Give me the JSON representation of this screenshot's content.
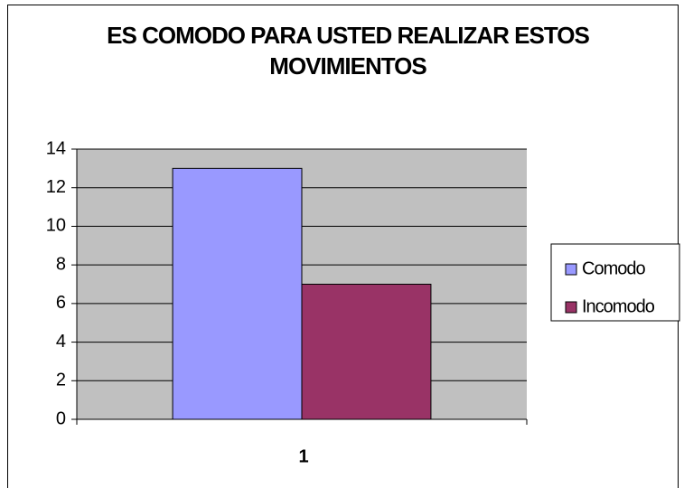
{
  "chart_data": {
    "type": "bar",
    "title": "ES COMODO PARA USTED REALIZAR ESTOS MOVIMIENTOS",
    "categories": [
      "1"
    ],
    "series": [
      {
        "name": "Comodo",
        "color": "#9999ff",
        "values": [
          13
        ]
      },
      {
        "name": "Incomodo",
        "color": "#993366",
        "values": [
          7
        ]
      }
    ],
    "ylim": [
      0,
      14
    ],
    "yticks": [
      0,
      2,
      4,
      6,
      8,
      10,
      12,
      14
    ],
    "grid": true,
    "legend": "right",
    "plot_background": "#c0c0c0"
  }
}
